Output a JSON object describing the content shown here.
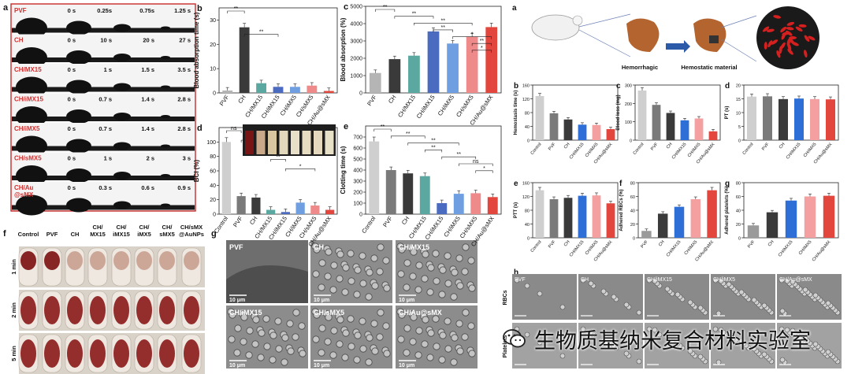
{
  "panel_letters": {
    "a": "a",
    "b": "b",
    "c": "c",
    "d": "d",
    "e": "e",
    "f": "f",
    "g": "g",
    "a2": "a",
    "b2": "b",
    "c2": "c",
    "d2": "d",
    "e2": "e",
    "f2": "f",
    "g2": "g",
    "h2": "h"
  },
  "contact_angle": {
    "rows": [
      {
        "label": "PVF",
        "times": [
          "0 s",
          "0.25s",
          "0.75s",
          "1.25 s"
        ]
      },
      {
        "label": "CH",
        "times": [
          "0 s",
          "10 s",
          "20 s",
          "27 s"
        ]
      },
      {
        "label": "CH/MX15",
        "times": [
          "0 s",
          "1 s",
          "1.5 s",
          "3.5 s"
        ]
      },
      {
        "label": "CH/iMX15",
        "times": [
          "0 s",
          "0.7 s",
          "1.4 s",
          "2.8 s"
        ]
      },
      {
        "label": "CH/iMX5",
        "times": [
          "0 s",
          "0.7 s",
          "1.4 s",
          "2.8 s"
        ]
      },
      {
        "label": "CH/sMX5",
        "times": [
          "0 s",
          "1 s",
          "2 s",
          "3 s"
        ]
      },
      {
        "label": "CH/Au\n@sMX",
        "times": [
          "0 s",
          "0.3 s",
          "0.6 s",
          "0.9 s"
        ]
      }
    ]
  },
  "vial_panel": {
    "columns": [
      "Control",
      "PVF",
      "CH",
      "CH/\nMX15",
      "CH/\niMX15",
      "CH/\niMX5",
      "CH/\nsMX5",
      "CH/sMX\n@AuNPs"
    ],
    "rows": [
      "1 min",
      "2 min",
      "5 min"
    ]
  },
  "sem_panel": {
    "labels": [
      "PVF",
      "CH",
      "CH/MX15",
      "CH/iMX15",
      "CH/sMX5",
      "CH/Au@sMX"
    ],
    "scale": "10 μm"
  },
  "hemostasis_schematic": {
    "labels": [
      "Hemorrhagic",
      "Hemostatic material"
    ]
  },
  "sem_h_panel": {
    "columns": [
      "PVF",
      "CH",
      "CH/iMX15",
      "CH/iMX5",
      "CH/Au@sMX"
    ],
    "rows": [
      "RBCs",
      "Platelets"
    ],
    "scale": "10 μm"
  },
  "watermark": {
    "text": "生物质基纳米复合材料实验室",
    "icon": "wechat-icon"
  },
  "chart_data": [
    {
      "id": "b",
      "type": "bar",
      "ylabel": "Blood absorption time (s)",
      "ylim": [
        0,
        35
      ],
      "yticks": [
        0,
        10,
        20,
        30
      ],
      "categories": [
        "PVF",
        "CH",
        "CH/MX15",
        "CH/iMX15",
        "CH/iMX5",
        "CH/sMX5",
        "CH/Au@sMX"
      ],
      "values": [
        1,
        27,
        4,
        2.5,
        2.5,
        3,
        0.8
      ],
      "colors": [
        "#b5b5b5",
        "#3a3a3a",
        "#5aa8a0",
        "#4a6bc0",
        "#6f9fe0",
        "#ef8a8a",
        "#e2463c"
      ],
      "annotations": [
        "**",
        "**"
      ]
    },
    {
      "id": "c",
      "type": "bar",
      "ylabel": "Blood absorption (%)",
      "ylim": [
        0,
        5000
      ],
      "yticks": [
        0,
        1000,
        2000,
        3000,
        4000,
        5000
      ],
      "categories": [
        "PVF",
        "CH",
        "CH/MX15",
        "CH/iMX15",
        "CH/iMX5",
        "CH/sMX5",
        "CH/Au@sMX"
      ],
      "values": [
        1150,
        1950,
        2150,
        3550,
        2850,
        3250,
        3800
      ],
      "colors": [
        "#b5b5b5",
        "#3a3a3a",
        "#5aa8a0",
        "#4a6bc0",
        "#6f9fe0",
        "#ef8a8a",
        "#e2463c"
      ],
      "annotations": [
        "**",
        "**",
        "**",
        "**",
        "*",
        "**",
        "*"
      ]
    },
    {
      "id": "d",
      "type": "bar",
      "ylabel": "BCI (%)",
      "ylim": [
        0,
        120
      ],
      "yticks": [
        0,
        20,
        40,
        60,
        80,
        100
      ],
      "categories": [
        "Control",
        "PVF",
        "CH",
        "CH/MX15",
        "CH/iMX15",
        "CH/iMX5",
        "CH/sMX5",
        "CH/Au@sMX"
      ],
      "values": [
        100,
        25,
        23,
        6,
        3,
        16,
        12,
        6
      ],
      "colors": [
        "#cfcfcf",
        "#7a7a7a",
        "#3a3a3a",
        "#5aa8a0",
        "#4a6bc0",
        "#6f9fe0",
        "#ef8a8a",
        "#e2463c"
      ],
      "annotations": [
        "ns",
        "*",
        "*",
        "**",
        "*"
      ]
    },
    {
      "id": "e",
      "type": "bar",
      "ylabel": "Clotting time (s)",
      "ylim": [
        0,
        800
      ],
      "yticks": [
        0,
        100,
        200,
        300,
        400,
        500,
        600,
        700
      ],
      "categories": [
        "Control",
        "PVF",
        "CH",
        "CH/MX15",
        "CH/iMX15",
        "CH/iMX5",
        "CH/sMX5",
        "CH/Au@sMX"
      ],
      "values": [
        660,
        400,
        370,
        345,
        100,
        185,
        190,
        155
      ],
      "colors": [
        "#cfcfcf",
        "#7a7a7a",
        "#3a3a3a",
        "#5aa8a0",
        "#4a6bc0",
        "#6f9fe0",
        "#ef8a8a",
        "#e2463c"
      ],
      "annotations": [
        "**",
        "**",
        "**",
        "**",
        "**",
        "ns",
        "*"
      ]
    },
    {
      "id": "b2",
      "type": "bar",
      "ylabel": "Hemostasis time (s)",
      "ylim": [
        0,
        160
      ],
      "yticks": [
        0,
        40,
        80,
        120,
        160
      ],
      "categories": [
        "Control",
        "PVF",
        "CH",
        "CH/iMX15",
        "CH/iMX5",
        "CH/Au@sMX"
      ],
      "values": [
        128,
        78,
        60,
        45,
        44,
        32
      ],
      "colors": [
        "#cfcfcf",
        "#7a7a7a",
        "#3a3a3a",
        "#2d6fd6",
        "#f4a0a0",
        "#e2463c"
      ]
    },
    {
      "id": "c2",
      "type": "bar",
      "ylabel": "Blood loss (mg)",
      "ylim": [
        0,
        300
      ],
      "yticks": [
        0,
        100,
        200,
        300
      ],
      "categories": [
        "Control",
        "PVF",
        "CH",
        "CH/iMX15",
        "CH/iMX5",
        "CH/Au@sMX"
      ],
      "values": [
        270,
        192,
        148,
        108,
        118,
        48
      ],
      "colors": [
        "#cfcfcf",
        "#7a7a7a",
        "#3a3a3a",
        "#2d6fd6",
        "#f4a0a0",
        "#e2463c"
      ]
    },
    {
      "id": "d2",
      "type": "bar",
      "ylabel": "PT (s)",
      "ylim": [
        0,
        20
      ],
      "yticks": [
        0,
        5,
        10,
        15,
        20
      ],
      "categories": [
        "Control",
        "PVF",
        "CH",
        "CH/iMX15",
        "CH/iMX5",
        "CH/Au@sMX"
      ],
      "values": [
        15.8,
        15.9,
        14.9,
        15.1,
        14.9,
        14.8
      ],
      "colors": [
        "#cfcfcf",
        "#7a7a7a",
        "#3a3a3a",
        "#2d6fd6",
        "#f4a0a0",
        "#e2463c"
      ]
    },
    {
      "id": "e2",
      "type": "bar",
      "ylabel": "PTT (s)",
      "ylim": [
        0,
        160
      ],
      "yticks": [
        0,
        40,
        80,
        120,
        160
      ],
      "categories": [
        "Control",
        "PVF",
        "CH",
        "CH/iMX15",
        "CH/iMX5",
        "CH/Au@sMX"
      ],
      "values": [
        138,
        112,
        116,
        122,
        123,
        100
      ],
      "colors": [
        "#cfcfcf",
        "#7a7a7a",
        "#3a3a3a",
        "#2d6fd6",
        "#f4a0a0",
        "#e2463c"
      ]
    },
    {
      "id": "f2",
      "type": "bar",
      "ylabel": "Adhered RBCs (%)",
      "ylim": [
        0,
        80
      ],
      "yticks": [
        0,
        20,
        40,
        60,
        80
      ],
      "categories": [
        "PVF",
        "CH",
        "CH/iMX15",
        "CH/iMX5",
        "CH/Au@sMX"
      ],
      "values": [
        10,
        35,
        45,
        56,
        69
      ],
      "colors": [
        "#9a9a9a",
        "#3a3a3a",
        "#2d6fd6",
        "#f4a0a0",
        "#e2463c"
      ]
    },
    {
      "id": "g2",
      "type": "bar",
      "ylabel": "Adhered platelets (%)",
      "ylim": [
        0,
        80
      ],
      "yticks": [
        0,
        20,
        40,
        60,
        80
      ],
      "categories": [
        "PVF",
        "CH",
        "CH/iMX15",
        "CH/iMX5",
        "CH/Au@sMX"
      ],
      "values": [
        18,
        37,
        54,
        60,
        61
      ],
      "colors": [
        "#9a9a9a",
        "#3a3a3a",
        "#2d6fd6",
        "#f4a0a0",
        "#e2463c"
      ]
    }
  ]
}
